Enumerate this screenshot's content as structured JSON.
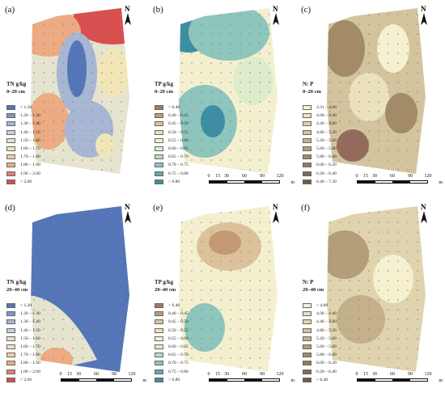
{
  "panels": [
    {
      "label": "(a)",
      "var": "TN g/kg",
      "depth": "0–20 cm",
      "legend": [
        {
          "t": "< 1.20",
          "c": "#5476b8"
        },
        {
          "t": "1.20 – 1.30",
          "c": "#7f98c7"
        },
        {
          "t": "1.30 – 1.40",
          "c": "#a6b6d3"
        },
        {
          "t": "1.40 – 1.50",
          "c": "#c9d2dc"
        },
        {
          "t": "1.50 – 1.60",
          "c": "#e6e3cf"
        },
        {
          "t": "1.60 – 1.70",
          "c": "#f2e6b8"
        },
        {
          "t": "1.70 – 1.80",
          "c": "#f2cf9e"
        },
        {
          "t": "1.80 – 1.90",
          "c": "#ecab82"
        },
        {
          "t": "1.90 – 2.00",
          "c": "#e4826a"
        },
        {
          "t": "> 2.00",
          "c": "#d94e4e"
        }
      ]
    },
    {
      "label": "(b)",
      "var": "TP g/kg",
      "depth": "0–20 cm",
      "legend": [
        {
          "t": "< 0.40",
          "c": "#a6795a"
        },
        {
          "t": "0.40 – 0.45",
          "c": "#c49a74"
        },
        {
          "t": "0.45 – 0.50",
          "c": "#dcc29b"
        },
        {
          "t": "0.50 – 0.55",
          "c": "#ece0b9"
        },
        {
          "t": "0.55 – 0.60",
          "c": "#f4f0cf"
        },
        {
          "t": "0.60 – 0.65",
          "c": "#dfeccb"
        },
        {
          "t": "0.65 – 0.70",
          "c": "#b9dcc4"
        },
        {
          "t": "0.70 – 0.75",
          "c": "#8ec5bd"
        },
        {
          "t": "0.75 – 0.80",
          "c": "#63a9b2"
        },
        {
          "t": "> 0.80",
          "c": "#3d8ea3"
        }
      ]
    },
    {
      "label": "(c)",
      "var": "N: P",
      "depth": "0–20 cm",
      "legend": [
        {
          "t": "3.31 – 4.00",
          "c": "#f5f0cf"
        },
        {
          "t": "4.00 – 4.40",
          "c": "#ebe2bd"
        },
        {
          "t": "4.40 – 4.80",
          "c": "#e0d4ae"
        },
        {
          "t": "4.80 – 5.20",
          "c": "#d3c49e"
        },
        {
          "t": "5.20 – 5.60",
          "c": "#c4b18b"
        },
        {
          "t": "5.60 – 5.80",
          "c": "#b39e79"
        },
        {
          "t": "5.80 – 6.00",
          "c": "#a38b68"
        },
        {
          "t": "6.00 – 6.20",
          "c": "#937a5c"
        },
        {
          "t": "6.20 – 6.40",
          "c": "#836a50"
        },
        {
          "t": "6.40 – 7.39",
          "c": "#735a45"
        }
      ]
    },
    {
      "label": "(d)",
      "var": "TN g/kg",
      "depth": "20–40 cm",
      "legend": [
        {
          "t": "< 1.20",
          "c": "#5476b8"
        },
        {
          "t": "1.20 – 1.30",
          "c": "#7f98c7"
        },
        {
          "t": "1.30 – 1.40",
          "c": "#a6b6d3"
        },
        {
          "t": "1.40 – 1.50",
          "c": "#c9d2dc"
        },
        {
          "t": "1.50 – 1.60",
          "c": "#e6e3cf"
        },
        {
          "t": "1.60 – 1.70",
          "c": "#f2e6b8"
        },
        {
          "t": "1.70 – 1.80",
          "c": "#f2cf9e"
        },
        {
          "t": "1.80 – 1.90",
          "c": "#ecab82"
        },
        {
          "t": "1.90 – 2.00",
          "c": "#e4826a"
        },
        {
          "t": "> 2.00",
          "c": "#d94e4e"
        }
      ]
    },
    {
      "label": "(e)",
      "var": "TP g/kg",
      "depth": "20–40 cm",
      "legend": [
        {
          "t": "< 0.40",
          "c": "#a6795a"
        },
        {
          "t": "0.40 – 0.45",
          "c": "#c49a74"
        },
        {
          "t": "0.45 – 0.50",
          "c": "#dcc29b"
        },
        {
          "t": "0.50 – 0.55",
          "c": "#ece0b9"
        },
        {
          "t": "0.55 – 0.60",
          "c": "#f4f0cf"
        },
        {
          "t": "0.60 – 0.65",
          "c": "#dfeccb"
        },
        {
          "t": "0.65 – 0.70",
          "c": "#b9dcc4"
        },
        {
          "t": "0.70 – 0.75",
          "c": "#8ec5bd"
        },
        {
          "t": "0.75 – 0.80",
          "c": "#63a9b2"
        },
        {
          "t": "> 0.80",
          "c": "#3d8ea3"
        }
      ]
    },
    {
      "label": "(f)",
      "var": "N: P",
      "depth": "20–40 cm",
      "legend": [
        {
          "t": "< 4.00",
          "c": "#f5f0cf"
        },
        {
          "t": "4.00 – 4.40",
          "c": "#ebe2bd"
        },
        {
          "t": "4.40 – 4.80",
          "c": "#e0d4ae"
        },
        {
          "t": "4.80 – 5.20",
          "c": "#d3c49e"
        },
        {
          "t": "5.20 – 5.60",
          "c": "#c4b18b"
        },
        {
          "t": "5.60 – 5.80",
          "c": "#b39e79"
        },
        {
          "t": "5.80 – 6.00",
          "c": "#a38b68"
        },
        {
          "t": "6.00 – 6.20",
          "c": "#937a5c"
        },
        {
          "t": "6.20 – 6.40",
          "c": "#836a50"
        },
        {
          "t": "> 6.40",
          "c": "#735a45"
        }
      ]
    }
  ],
  "north_label": "N",
  "scale": {
    "ticks": [
      "0",
      "15",
      "30",
      "60",
      "90",
      "120"
    ],
    "unit": "m"
  }
}
